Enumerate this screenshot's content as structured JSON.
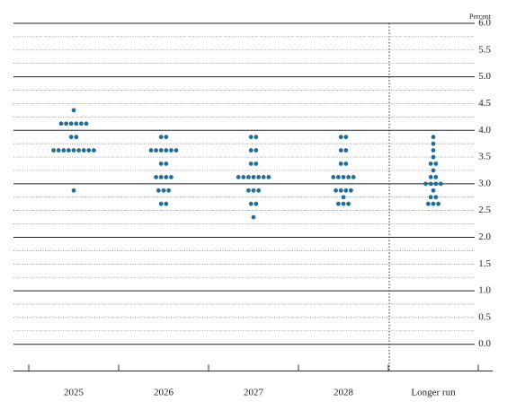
{
  "chart_data": {
    "type": "dot",
    "y_label": "Percent",
    "categories": [
      "2025",
      "2026",
      "2027",
      "2028",
      "Longer run"
    ],
    "color": "#1f6f99",
    "dots": [
      [
        4.375,
        4.125,
        4.125,
        4.125,
        4.125,
        4.125,
        4.125,
        3.875,
        3.875,
        3.625,
        3.625,
        3.625,
        3.625,
        3.625,
        3.625,
        3.625,
        3.625,
        3.625,
        2.875
      ],
      [
        3.875,
        3.875,
        3.625,
        3.625,
        3.625,
        3.625,
        3.625,
        3.625,
        3.375,
        3.375,
        3.125,
        3.125,
        3.125,
        3.125,
        2.875,
        2.875,
        2.875,
        2.625,
        2.625
      ],
      [
        3.875,
        3.875,
        3.625,
        3.625,
        3.375,
        3.375,
        3.125,
        3.125,
        3.125,
        3.125,
        3.125,
        3.125,
        3.125,
        2.875,
        2.875,
        2.875,
        2.625,
        2.625,
        2.375
      ],
      [
        3.875,
        3.875,
        3.625,
        3.625,
        3.375,
        3.375,
        3.125,
        3.125,
        3.125,
        3.125,
        3.125,
        2.875,
        2.875,
        2.875,
        2.875,
        2.75,
        2.625,
        2.625,
        2.625
      ],
      [
        3.875,
        3.75,
        3.625,
        3.5,
        3.375,
        3.375,
        3.25,
        3.125,
        3.125,
        3.0,
        3.0,
        3.0,
        3.0,
        2.875,
        2.75,
        2.75,
        2.625,
        2.625,
        2.625
      ]
    ],
    "ylim": [
      -0.5,
      6.0
    ],
    "yticks": [
      {
        "value": 0,
        "label": "0.0"
      },
      0.5,
      {
        "value": 1,
        "label": "1.0"
      },
      1.5,
      {
        "value": 2,
        "label": "2.0"
      },
      2.5,
      {
        "value": 3,
        "label": "3.0"
      },
      3.5,
      {
        "value": 4,
        "label": "4.0"
      },
      4.5,
      {
        "value": 5,
        "label": "5.0"
      },
      5.5,
      {
        "value": 6,
        "label": "6.0"
      }
    ],
    "minor_yticks": [
      0.25,
      0.75,
      1.25,
      1.75,
      2.25,
      2.75,
      3.25,
      3.75,
      4.25,
      4.75,
      5.25,
      5.75
    ],
    "grid": true
  }
}
